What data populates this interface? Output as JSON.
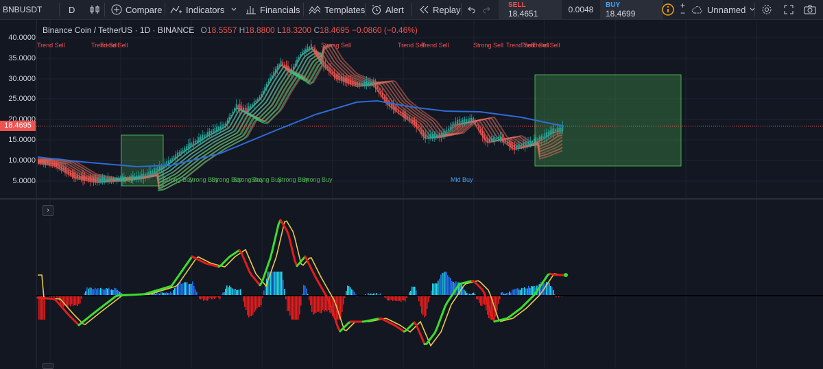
{
  "toolbar": {
    "symbol": "BNBUSDT",
    "interval": "D",
    "compare": "Compare",
    "indicators": "Indicators",
    "financials": "Financials",
    "templates": "Templates",
    "alert": "Alert",
    "replay": "Replay",
    "layout_name": "Unnamed"
  },
  "trade": {
    "sell_label": "SELL",
    "sell_price": "18.4651",
    "spread": "0.0048",
    "buy_label": "BUY",
    "buy_price": "18.4699"
  },
  "legend": {
    "title": "Binance Coin / TetherUS · 1D · BINANCE",
    "o_label": "O",
    "o_value": "18.5557",
    "h_label": "H",
    "h_value": "18.8800",
    "l_label": "L",
    "l_value": "18.3200",
    "c_label": "C",
    "c_value": "18.4695",
    "change": "−0.0860 (−0.46%)"
  },
  "price_axis": {
    "labels": [
      "40.0000",
      "35.0000",
      "30.0000",
      "25.0000",
      "20.0000",
      "15.0000",
      "10.0000",
      "5.0000"
    ],
    "last_price": "18.4695"
  },
  "signals": {
    "sell": [
      "Trend Sell",
      "Trend Sell",
      "Trend Sell",
      "Strong Sell",
      "Trend Sell",
      "Trend Sell",
      "Strong Sell",
      "Trend Sell",
      "Trend Sell",
      "Trend Sell"
    ],
    "buy": [
      "Buy",
      "Strong Buy",
      "Strong Buy",
      "Strong Buy",
      "Strong Buy",
      "Strong Buy",
      "Strong Buy",
      "Strong Buy"
    ],
    "mid": "Mid Buy"
  },
  "colors": {
    "background": "#131722",
    "toolbar": "#1e222d",
    "sell": "#ef5350",
    "buy": "#4caf50",
    "ma": "#2e6bd6",
    "accent": "#f7a600"
  },
  "icons": [
    "plus-circle-icon",
    "indicators-icon",
    "financials-icon",
    "templates-icon",
    "alert-icon",
    "replay-icon",
    "undo-icon",
    "redo-icon",
    "info-icon",
    "cloud-icon",
    "gear-icon",
    "fullscreen-icon",
    "camera-icon"
  ]
}
